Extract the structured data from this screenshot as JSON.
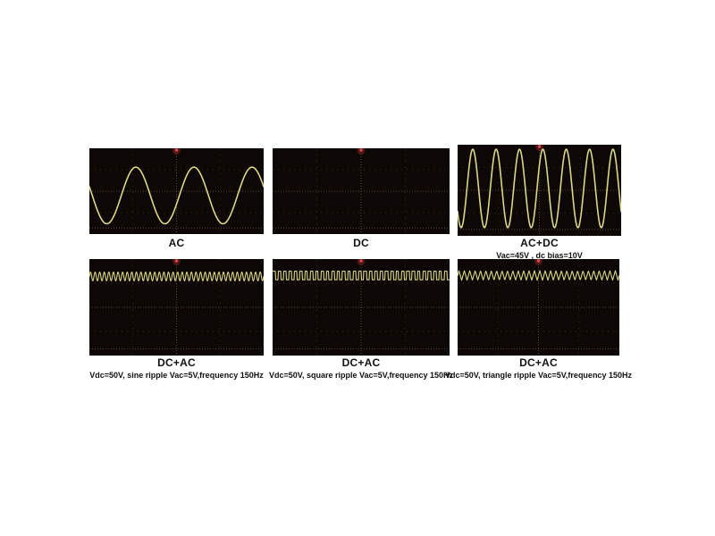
{
  "figure": {
    "description": "Six oscilloscope screen captures comparing AC, DC and DC+AC (ripple) voltages"
  },
  "chart_data": {
    "type": "line",
    "subtype": "oscilloscope-waveforms",
    "colors": {
      "screen_bg": "#0d0705",
      "trace": "#d9d884",
      "grid": "#3a2c22",
      "grid_bright": "#5c4536",
      "marker": "#d14b4b",
      "marker_glow": "rgba(155,40,40,0.45)",
      "caption": "#111111"
    },
    "panels": [
      {
        "title": "AC",
        "subtitle": "",
        "wave": {
          "kind": "sine",
          "cycles": 3,
          "amplitude_frac": 0.33,
          "center_frac": 0.55,
          "phase": 0.45
        },
        "description": "pure AC sine wave, ~3 cycles visible, centered on screen"
      },
      {
        "title": "DC",
        "subtitle": "",
        "wave": {
          "kind": "none",
          "cycles": 0,
          "amplitude_frac": 0,
          "center_frac": 0.5,
          "phase": 0
        },
        "description": "DC level - empty graticule, no visible trace"
      },
      {
        "title": "AC+DC",
        "subtitle": "Vac=45V , dc bias=10V",
        "wave": {
          "kind": "sine",
          "cycles": 7,
          "amplitude_frac": 0.43,
          "center_frac": 0.48,
          "phase": 0.6
        },
        "description": "large sine wave, ~7 cycles filling the screen"
      },
      {
        "title": "DC+AC",
        "subtitle": "Vdc=50V, sine ripple Vac=5V,frequency 150Hz",
        "wave": {
          "kind": "sine",
          "cycles": 38,
          "amplitude_frac": 0.046,
          "center_frac": 0.18,
          "phase": 0
        },
        "description": "small high-frequency sine ripple riding near top of screen"
      },
      {
        "title": "DC+AC",
        "subtitle": "Vdc=50V, square ripple Vac=5V,frequency 150Hz",
        "wave": {
          "kind": "square",
          "cycles": 33,
          "amplitude_frac": 0.045,
          "center_frac": 0.17,
          "phase": 0
        },
        "description": "small high-frequency square ripple riding near top of screen"
      },
      {
        "title": "DC+AC",
        "subtitle": "Vdc=50V, triangle ripple Vac=5V,frequency 150Hz",
        "wave": {
          "kind": "triangle",
          "cycles": 30,
          "amplitude_frac": 0.05,
          "center_frac": 0.17,
          "phase": 0
        },
        "description": "small high-frequency triangle ripple riding near top of screen"
      }
    ]
  }
}
